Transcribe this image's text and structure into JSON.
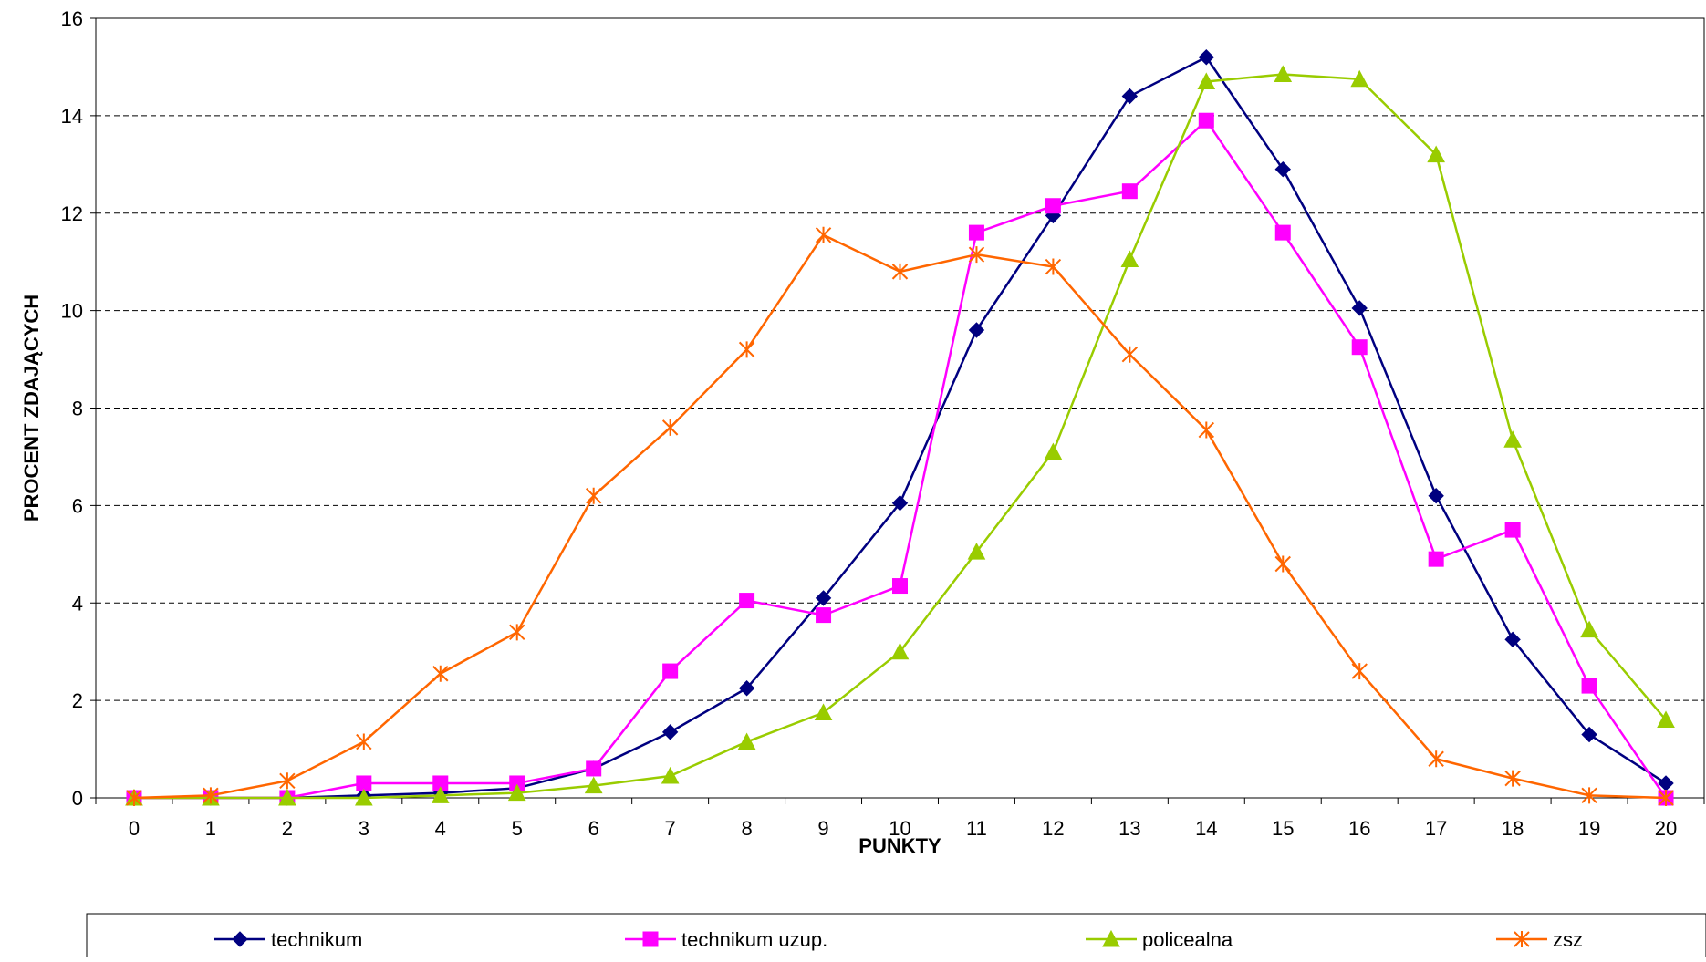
{
  "chart_data": {
    "type": "line",
    "title": "",
    "xlabel": "PUNKTY",
    "ylabel": "PROCENT ZDAJĄCYCH",
    "x": [
      0,
      1,
      2,
      3,
      4,
      5,
      6,
      7,
      8,
      9,
      10,
      11,
      12,
      13,
      14,
      15,
      16,
      17,
      18,
      19,
      20
    ],
    "xlim": [
      0,
      20
    ],
    "ylim": [
      0,
      16
    ],
    "yticks": [
      0,
      2,
      4,
      6,
      8,
      10,
      12,
      14,
      16
    ],
    "grid": "horizontal dashed",
    "legend_position": "bottom",
    "series": [
      {
        "name": "technikum",
        "color": "#000080",
        "marker": "diamond",
        "values": [
          0,
          0,
          0,
          0.05,
          0.1,
          0.2,
          0.6,
          1.35,
          2.25,
          4.1,
          6.05,
          9.6,
          11.95,
          14.4,
          15.2,
          12.9,
          10.05,
          6.2,
          3.25,
          1.3,
          0.3
        ]
      },
      {
        "name": "technikum uzup.",
        "color": "#FF00FF",
        "marker": "square",
        "values": [
          0,
          0,
          0,
          0.3,
          0.3,
          0.3,
          0.6,
          2.6,
          4.05,
          3.75,
          4.35,
          11.6,
          12.15,
          12.45,
          13.9,
          11.6,
          9.25,
          4.9,
          5.5,
          2.3,
          0
        ]
      },
      {
        "name": "policealna",
        "color": "#99CC00",
        "marker": "triangle",
        "values": [
          0,
          0,
          0,
          0,
          0.05,
          0.1,
          0.25,
          0.45,
          1.15,
          1.75,
          3.0,
          5.05,
          7.1,
          11.05,
          14.7,
          14.85,
          14.75,
          13.2,
          7.35,
          3.45,
          1.6
        ]
      },
      {
        "name": "zsz",
        "color": "#FF6600",
        "marker": "star",
        "values": [
          0,
          0.05,
          0.35,
          1.15,
          2.55,
          3.4,
          6.2,
          7.6,
          9.2,
          11.55,
          10.8,
          11.15,
          10.9,
          9.1,
          7.55,
          4.8,
          2.6,
          0.8,
          0.4,
          0.05,
          0
        ]
      }
    ]
  }
}
